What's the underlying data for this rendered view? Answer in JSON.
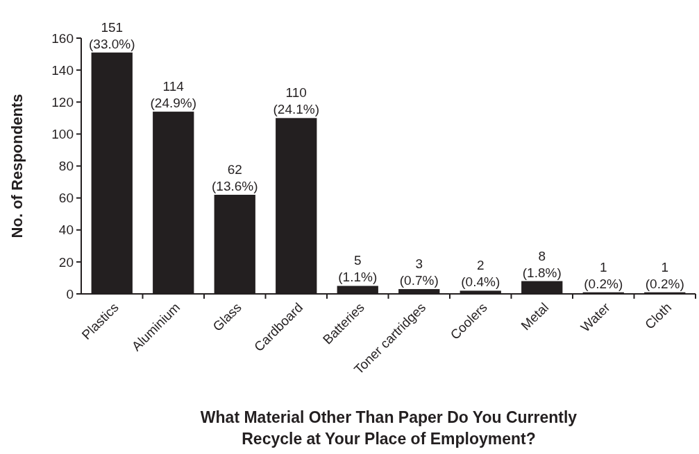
{
  "chart_data": {
    "type": "bar",
    "xlabel": "What Material Other Than Paper Do You Currently Recycle at Your Place of Employment?",
    "ylabel": "No. of Respondents",
    "categories": [
      "Plastics",
      "Aluminium",
      "Glass",
      "Cardboard",
      "Batteries",
      "Toner cartridges",
      "Coolers",
      "Metal",
      "Water",
      "Cloth"
    ],
    "values": [
      151,
      114,
      62,
      110,
      5,
      3,
      2,
      8,
      1,
      1
    ],
    "value_labels": [
      "151 (33.0%)",
      "114 (24.9%)",
      "62 (13.6%)",
      "110 (24.1%)",
      "5 (1.1%)",
      "3 (0.7%)",
      "2 (0.4%)",
      "8 (1.8%)",
      "1 (0.2%)",
      "1 (0.2%)"
    ],
    "color": "#231f20",
    "ylim": [
      0,
      160
    ],
    "yticks": [
      0,
      20,
      40,
      60,
      80,
      100,
      120,
      140,
      160
    ],
    "grid": false
  }
}
